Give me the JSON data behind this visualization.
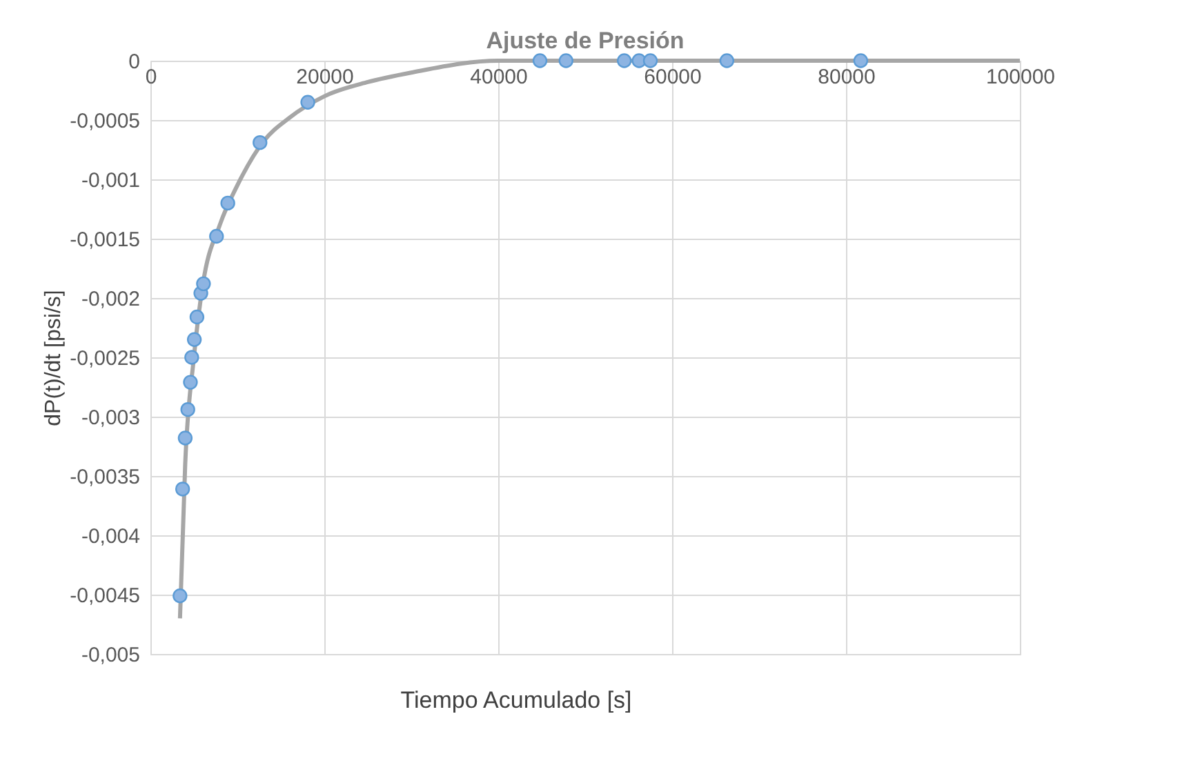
{
  "chart_data": {
    "type": "scatter",
    "title": "Ajuste de Presión",
    "xlabel": "Tiempo Acumulado [s]",
    "ylabel": "dP(t)/dt  [psi/s]",
    "xlim": [
      0,
      100000
    ],
    "xticks": [
      0,
      20000,
      40000,
      60000,
      80000,
      100000
    ],
    "ylim": [
      -0.005,
      0
    ],
    "yticks": [
      {
        "value": -0.005,
        "label": "-0,005"
      },
      {
        "value": -0.0045,
        "label": "-0,0045"
      },
      {
        "value": -0.004,
        "label": "-0,004"
      },
      {
        "value": -0.0035,
        "label": "-0,0035"
      },
      {
        "value": -0.003,
        "label": "-0,003"
      },
      {
        "value": -0.0025,
        "label": "-0,0025"
      },
      {
        "value": -0.002,
        "label": "-0,002"
      },
      {
        "value": -0.0015,
        "label": "-0,0015"
      },
      {
        "value": -0.001,
        "label": "-0,001"
      },
      {
        "value": -0.0005,
        "label": "-0,0005"
      },
      {
        "value": 0,
        "label": "0"
      }
    ],
    "grid": true,
    "marker": "circle",
    "series": [
      {
        "type": "line",
        "marker": "none",
        "color": "#a6a6a6",
        "x": [
          3400,
          4000,
          5000,
          6000,
          8000,
          10000,
          13000,
          16000,
          20000,
          25000,
          30000,
          40000,
          50000,
          60000,
          100000
        ],
        "values": [
          -0.0047,
          -0.0034,
          -0.0025,
          -0.0019,
          -0.00138,
          -0.00105,
          -0.00068,
          -0.00048,
          -0.0003,
          -0.00018,
          -0.0001,
          0,
          0,
          0,
          0
        ]
      },
      {
        "color": "#8db4e2",
        "x": [
          3400,
          3700,
          4000,
          4300,
          4600,
          4750,
          5050,
          5350,
          5800,
          6100,
          7600,
          8900,
          12600,
          18100,
          44800,
          47800,
          54500,
          56200,
          57500,
          66300,
          81700
        ],
        "values": [
          -0.00451,
          -0.00361,
          -0.00318,
          -0.00294,
          -0.00271,
          -0.0025,
          -0.00235,
          -0.00216,
          -0.00196,
          -0.00188,
          -0.00148,
          -0.0012,
          -0.00069,
          -0.00035,
          0,
          0,
          0,
          0,
          0,
          0,
          0
        ]
      }
    ]
  }
}
